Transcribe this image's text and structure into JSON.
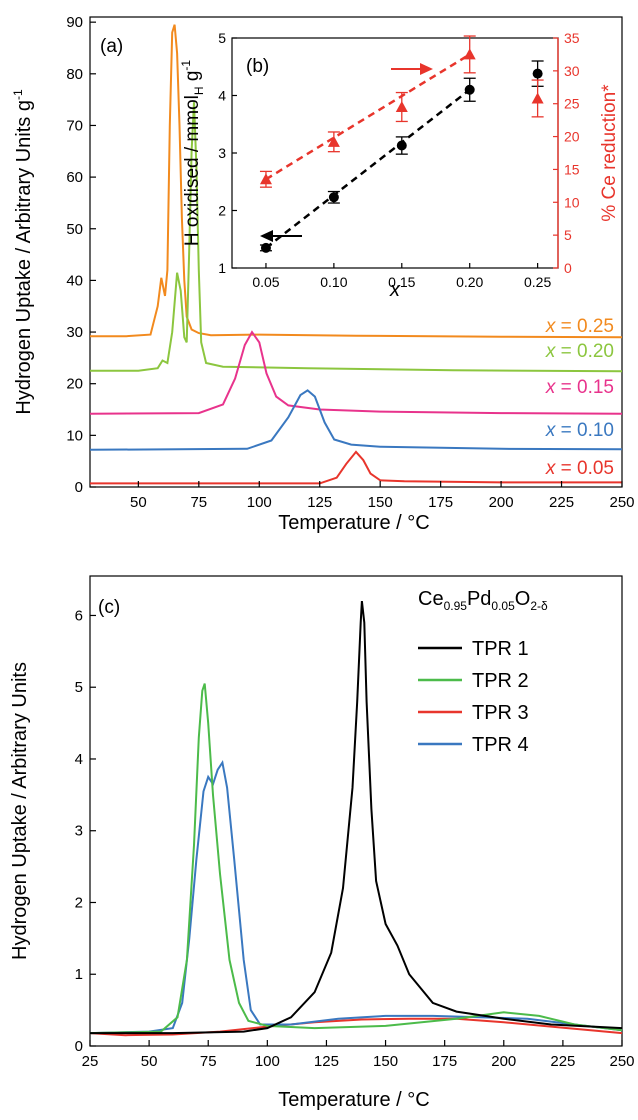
{
  "chart_data": [
    {
      "panel": "(a)",
      "type": "line",
      "xlabel": "Temperature / °C",
      "ylabel": "Hydrogen Uptake / Arbitrary Units g",
      "ylabel_sup": "-1",
      "xlim": [
        30,
        250
      ],
      "ylim": [
        0,
        91
      ],
      "xticks": [
        50,
        75,
        100,
        125,
        150,
        175,
        200,
        225,
        250
      ],
      "yticks": [
        0,
        10,
        20,
        30,
        40,
        50,
        60,
        70,
        80,
        90
      ],
      "series": [
        {
          "name": "x = 0.25",
          "x_label": "x",
          "value_label": " = 0.25",
          "color": "#f28a1e",
          "points": [
            [
              30,
              29.2
            ],
            [
              45,
              29.2
            ],
            [
              55,
              29.5
            ],
            [
              58,
              35
            ],
            [
              59.5,
              40.5
            ],
            [
              61,
              37
            ],
            [
              62,
              42
            ],
            [
              63,
              70
            ],
            [
              64,
              88
            ],
            [
              65,
              89.5
            ],
            [
              66,
              84
            ],
            [
              67,
              70
            ],
            [
              68,
              52
            ],
            [
              69,
              40
            ],
            [
              70,
              33
            ],
            [
              72,
              30.5
            ],
            [
              75,
              29.8
            ],
            [
              80,
              29.4
            ],
            [
              100,
              29.5
            ],
            [
              140,
              29.3
            ],
            [
              200,
              29.1
            ],
            [
              250,
              29.0
            ]
          ]
        },
        {
          "name": "x = 0.20",
          "x_label": "x",
          "value_label": " = 0.20",
          "color": "#8cc63f",
          "points": [
            [
              30,
              22.5
            ],
            [
              50,
              22.5
            ],
            [
              58,
              23
            ],
            [
              60,
              24.5
            ],
            [
              62,
              24
            ],
            [
              64,
              30
            ],
            [
              66,
              41.5
            ],
            [
              67.5,
              38
            ],
            [
              69,
              29
            ],
            [
              70,
              28
            ],
            [
              71,
              45
            ],
            [
              72,
              65
            ],
            [
              73,
              74.5
            ],
            [
              74,
              62
            ],
            [
              75,
              42
            ],
            [
              76,
              28
            ],
            [
              78,
              24
            ],
            [
              85,
              23.3
            ],
            [
              120,
              23
            ],
            [
              180,
              22.6
            ],
            [
              250,
              22.4
            ]
          ]
        },
        {
          "name": "x = 0.15",
          "x_label": "x",
          "value_label": " = 0.15",
          "color": "#e8338c",
          "points": [
            [
              30,
              14.2
            ],
            [
              75,
              14.3
            ],
            [
              85,
              16
            ],
            [
              90,
              21
            ],
            [
              94,
              27.5
            ],
            [
              97,
              30
            ],
            [
              100,
              28
            ],
            [
              103,
              22
            ],
            [
              107,
              17.5
            ],
            [
              112,
              15.8
            ],
            [
              125,
              15
            ],
            [
              150,
              14.6
            ],
            [
              200,
              14.3
            ],
            [
              250,
              14.2
            ]
          ]
        },
        {
          "name": "x = 0.10",
          "x_label": "x",
          "value_label": " = 0.10",
          "color": "#3a78c0",
          "points": [
            [
              30,
              7.2
            ],
            [
              95,
              7.4
            ],
            [
              105,
              9
            ],
            [
              112,
              13.5
            ],
            [
              117,
              17.8
            ],
            [
              120,
              18.7
            ],
            [
              123,
              17.5
            ],
            [
              127,
              12.5
            ],
            [
              131,
              9.2
            ],
            [
              138,
              8.2
            ],
            [
              150,
              7.8
            ],
            [
              200,
              7.4
            ],
            [
              250,
              7.3
            ]
          ]
        },
        {
          "name": "x = 0.05",
          "x_label": "x",
          "value_label": " = 0.05",
          "color": "#e8352c",
          "points": [
            [
              30,
              0.7
            ],
            [
              125,
              0.7
            ],
            [
              132,
              1.8
            ],
            [
              136,
              4.5
            ],
            [
              140,
              6.8
            ],
            [
              143,
              5.2
            ],
            [
              146,
              2.6
            ],
            [
              150,
              1.3
            ],
            [
              160,
              1.1
            ],
            [
              200,
              0.9
            ],
            [
              250,
              0.9
            ]
          ]
        }
      ]
    },
    {
      "panel": "(b)",
      "type": "scatter",
      "xlabel": "x",
      "ylabel_main": "H oxidised / mmol",
      "ylabel_sub": "H",
      "ylabel_tail": " g",
      "ylabel_sup": "-1",
      "ylabel_right": "% Ce reduction*",
      "xlim": [
        0.025,
        0.265
      ],
      "ylim": [
        1,
        5
      ],
      "ylim_right": [
        0,
        35
      ],
      "xticks": [
        "0.05",
        "0.10",
        "0.15",
        "0.20",
        "0.25"
      ],
      "yticks": [
        "1",
        "2",
        "3",
        "4",
        "5"
      ],
      "yticks_right": [
        "0",
        "5",
        "10",
        "15",
        "20",
        "25",
        "30",
        "35"
      ],
      "series": [
        {
          "name": "H oxidised",
          "axis": "left",
          "marker": "circle",
          "color": "#000000",
          "x": [
            0.05,
            0.1,
            0.15,
            0.2,
            0.25
          ],
          "y": [
            1.35,
            2.23,
            3.13,
            4.1,
            4.38
          ],
          "err": [
            0.05,
            0.1,
            0.15,
            0.2,
            0.22
          ]
        },
        {
          "name": "% Ce reduction",
          "axis": "right",
          "marker": "triangle",
          "color": "#e8352c",
          "x": [
            0.05,
            0.1,
            0.15,
            0.2,
            0.25
          ],
          "y": [
            13.5,
            19.2,
            24.5,
            32.5,
            25.8
          ],
          "err": [
            1.2,
            1.5,
            2.2,
            2.8,
            2.8
          ]
        }
      ]
    },
    {
      "panel": "(c)",
      "type": "line",
      "xlabel": "Temperature / °C",
      "ylabel": "Hydrogen Uptake / Arbitrary Units",
      "xlim": [
        25,
        250
      ],
      "ylim": [
        0,
        6.55
      ],
      "xticks": [
        25,
        50,
        75,
        100,
        125,
        150,
        175,
        200,
        225,
        250
      ],
      "yticks": [
        0,
        1,
        2,
        3,
        4,
        5,
        6
      ],
      "legend_title": "Ce",
      "legend_title_sub1": "0.95",
      "legend_title_mid": "Pd",
      "legend_title_sub2": "0.05",
      "legend_title_o": "O",
      "legend_title_sub3": "2-δ",
      "series": [
        {
          "name": "TPR 1",
          "color": "#000000",
          "points": [
            [
              25,
              0.18
            ],
            [
              60,
              0.18
            ],
            [
              90,
              0.2
            ],
            [
              100,
              0.25
            ],
            [
              110,
              0.4
            ],
            [
              120,
              0.75
            ],
            [
              127,
              1.3
            ],
            [
              132,
              2.2
            ],
            [
              136,
              3.6
            ],
            [
              138,
              4.8
            ],
            [
              139.5,
              5.9
            ],
            [
              140,
              6.2
            ],
            [
              141,
              5.9
            ],
            [
              142,
              4.8
            ],
            [
              144,
              3.3
            ],
            [
              146,
              2.3
            ],
            [
              150,
              1.7
            ],
            [
              155,
              1.4
            ],
            [
              160,
              1.0
            ],
            [
              170,
              0.6
            ],
            [
              180,
              0.48
            ],
            [
              200,
              0.38
            ],
            [
              220,
              0.3
            ],
            [
              250,
              0.25
            ]
          ]
        },
        {
          "name": "TPR 2",
          "color": "#4cbb4a",
          "points": [
            [
              25,
              0.18
            ],
            [
              55,
              0.2
            ],
            [
              62,
              0.4
            ],
            [
              66,
              1.2
            ],
            [
              69,
              2.8
            ],
            [
              71,
              4.3
            ],
            [
              72.5,
              4.95
            ],
            [
              73.5,
              5.05
            ],
            [
              75,
              4.5
            ],
            [
              77,
              3.5
            ],
            [
              80,
              2.4
            ],
            [
              84,
              1.2
            ],
            [
              88,
              0.6
            ],
            [
              92,
              0.35
            ],
            [
              100,
              0.28
            ],
            [
              120,
              0.25
            ],
            [
              150,
              0.28
            ],
            [
              180,
              0.38
            ],
            [
              200,
              0.47
            ],
            [
              215,
              0.42
            ],
            [
              230,
              0.3
            ],
            [
              250,
              0.22
            ]
          ]
        },
        {
          "name": "TPR 3",
          "color": "#e8352c",
          "points": [
            [
              25,
              0.18
            ],
            [
              40,
              0.15
            ],
            [
              60,
              0.16
            ],
            [
              80,
              0.2
            ],
            [
              100,
              0.27
            ],
            [
              120,
              0.33
            ],
            [
              140,
              0.37
            ],
            [
              160,
              0.38
            ],
            [
              180,
              0.38
            ],
            [
              200,
              0.33
            ],
            [
              220,
              0.27
            ],
            [
              250,
              0.18
            ]
          ]
        },
        {
          "name": "TPR 4",
          "color": "#3a78c0",
          "points": [
            [
              25,
              0.18
            ],
            [
              50,
              0.2
            ],
            [
              60,
              0.25
            ],
            [
              64,
              0.6
            ],
            [
              67,
              1.5
            ],
            [
              70,
              2.6
            ],
            [
              73,
              3.55
            ],
            [
              75,
              3.75
            ],
            [
              77,
              3.65
            ],
            [
              79,
              3.85
            ],
            [
              81,
              3.95
            ],
            [
              83,
              3.6
            ],
            [
              86,
              2.6
            ],
            [
              90,
              1.2
            ],
            [
              93,
              0.5
            ],
            [
              97,
              0.3
            ],
            [
              110,
              0.3
            ],
            [
              130,
              0.38
            ],
            [
              150,
              0.42
            ],
            [
              170,
              0.42
            ],
            [
              190,
              0.4
            ],
            [
              210,
              0.38
            ],
            [
              230,
              0.3
            ],
            [
              250,
              0.22
            ]
          ]
        }
      ]
    }
  ]
}
